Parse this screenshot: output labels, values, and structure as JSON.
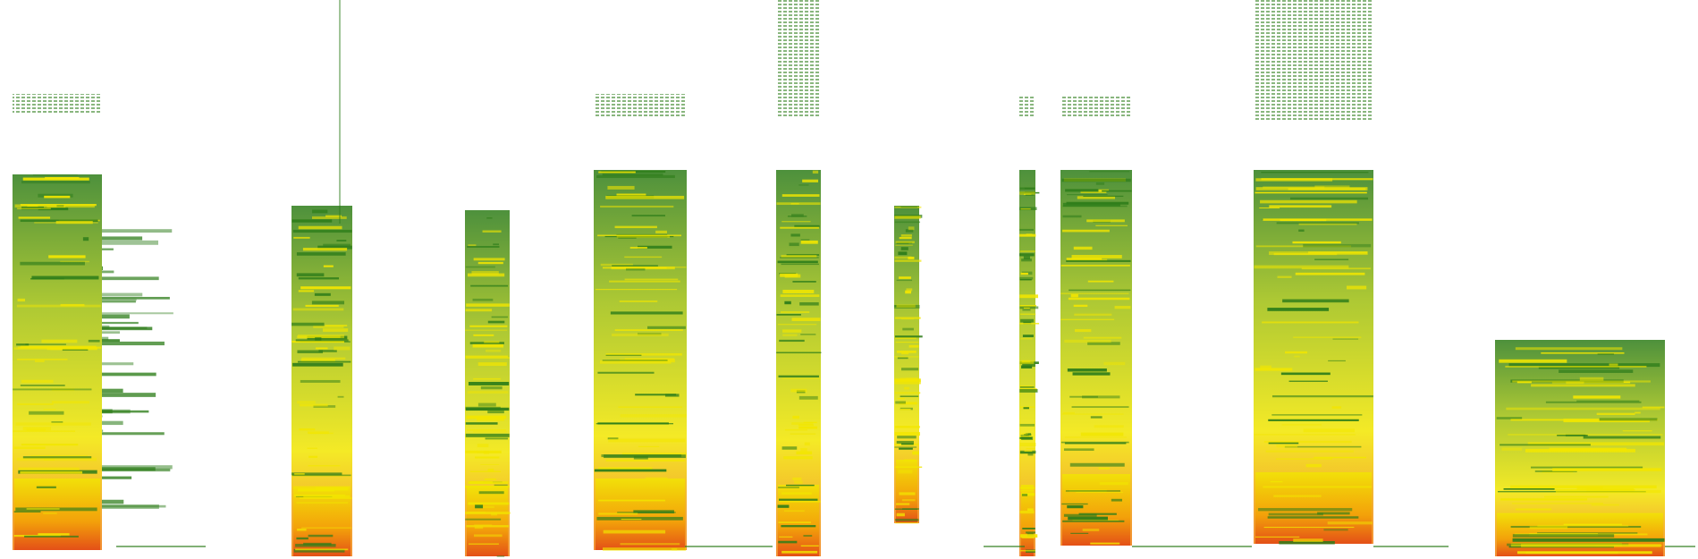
{
  "colors": {
    "background": "#ffffff",
    "low_energy": "#2e7d1a",
    "mid_energy": "#f2e600",
    "high_energy": "#f07a10",
    "peak_energy": "#e04010"
  },
  "segments": [
    {
      "id": "seg-1"
    },
    {
      "id": "seg-2"
    },
    {
      "id": "seg-3"
    },
    {
      "id": "seg-4"
    },
    {
      "id": "seg-5"
    },
    {
      "id": "seg-6"
    },
    {
      "id": "seg-7"
    },
    {
      "id": "seg-8"
    },
    {
      "id": "seg-9"
    },
    {
      "id": "seg-10"
    }
  ]
}
